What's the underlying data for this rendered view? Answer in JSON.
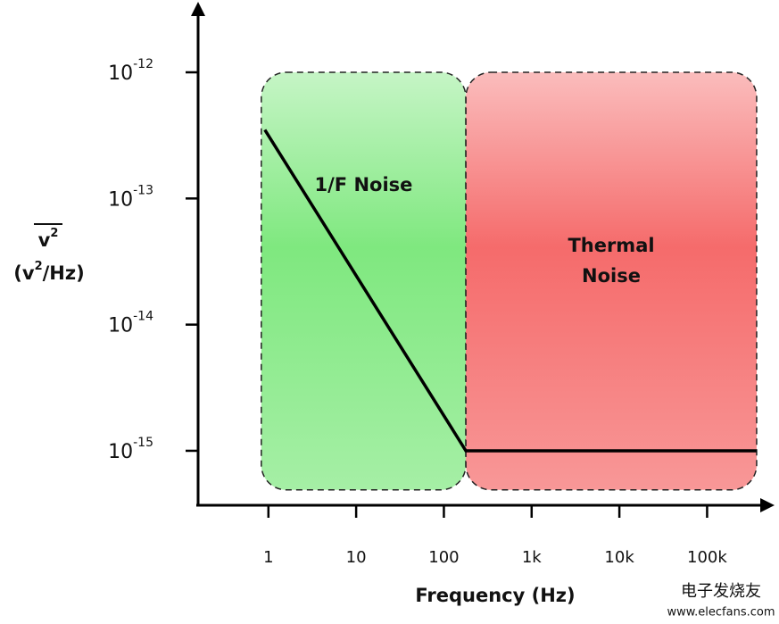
{
  "chart_data": {
    "type": "line",
    "xlabel": "Frequency (Hz)",
    "ylabel": {
      "symbol": "v",
      "symbol_sup": "2",
      "unit_open": "(v",
      "unit_sup": "2",
      "unit_close": "/Hz)"
    },
    "xscale": "log",
    "yscale": "log",
    "xlim": [
      0.158,
      510000
    ],
    "ylim": [
      3.76e-16,
      3.18e-12
    ],
    "xticks": [
      {
        "value": 1,
        "label": "1"
      },
      {
        "value": 10,
        "label": "10"
      },
      {
        "value": 100,
        "label": "100"
      },
      {
        "value": 1000,
        "label": "1k"
      },
      {
        "value": 10000,
        "label": "10k"
      },
      {
        "value": 100000,
        "label": "100k"
      }
    ],
    "yticks": [
      {
        "value": 1e-12,
        "label": "10",
        "sup": "-12"
      },
      {
        "value": 1e-13,
        "label": "10",
        "sup": "-13"
      },
      {
        "value": 1e-14,
        "label": "10",
        "sup": "-14"
      },
      {
        "value": 1e-15,
        "label": "10",
        "sup": "-15"
      }
    ],
    "regions": [
      {
        "label": [
          "1/F Noise"
        ],
        "color": "#7fe87f",
        "x": [
          0.83,
          178
        ],
        "y": [
          4.9e-16,
          1e-12
        ]
      },
      {
        "label": [
          "Thermal",
          "Noise"
        ],
        "color": "#f56b6b",
        "x": [
          178,
          367000
        ],
        "y": [
          4.9e-16,
          1e-12
        ]
      }
    ],
    "series": [
      {
        "color": "#000000",
        "x": [
          0.91,
          178,
          367000
        ],
        "values": [
          3.5e-13,
          1e-15,
          1e-15
        ]
      }
    ],
    "watermark": [
      "电子发烧友",
      "www.elecfans.com"
    ]
  }
}
